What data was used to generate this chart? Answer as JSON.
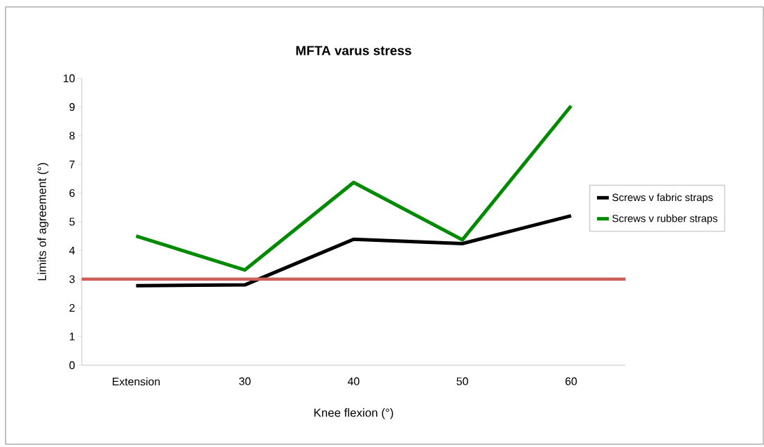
{
  "chart_data": {
    "type": "line",
    "title": "MFTA varus stress",
    "xlabel": "Knee flexion (°)",
    "ylabel": "Limits of agreement (°)",
    "categories": [
      "Extension",
      "30",
      "40",
      "50",
      "60"
    ],
    "series": [
      {
        "name": "Screws v fabric straps",
        "color": "#000000",
        "values": [
          2.77,
          2.8,
          4.39,
          4.24,
          5.21
        ]
      },
      {
        "name": "Screws v rubber straps",
        "color": "#008a00",
        "values": [
          4.5,
          3.32,
          6.37,
          4.37,
          9.04
        ]
      }
    ],
    "ylim": [
      0,
      10
    ],
    "yticks": [
      0,
      1,
      2,
      3,
      4,
      5,
      6,
      7,
      8,
      9,
      10
    ],
    "ref_lines": [
      {
        "axis": "y",
        "value": 3,
        "color": "#cd5f5a"
      }
    ],
    "grid": false,
    "legend": "right",
    "marker": "none",
    "line_style": "solid"
  }
}
